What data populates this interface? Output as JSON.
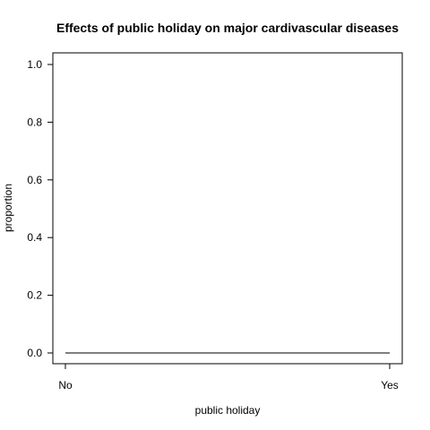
{
  "chart_data": {
    "type": "line",
    "title": "Effects of public holiday on major cardivascular diseases",
    "xlabel": "public holiday",
    "ylabel": "proportion",
    "categories": [
      "No",
      "Yes"
    ],
    "series": [
      {
        "values": [
          0.0,
          0.0
        ],
        "color": "#000000"
      }
    ],
    "ylim": [
      0.0,
      1.0
    ],
    "yticks": [
      "0.0",
      "0.2",
      "0.4",
      "0.6",
      "0.8",
      "1.0"
    ],
    "grid": false,
    "legend": "none"
  }
}
